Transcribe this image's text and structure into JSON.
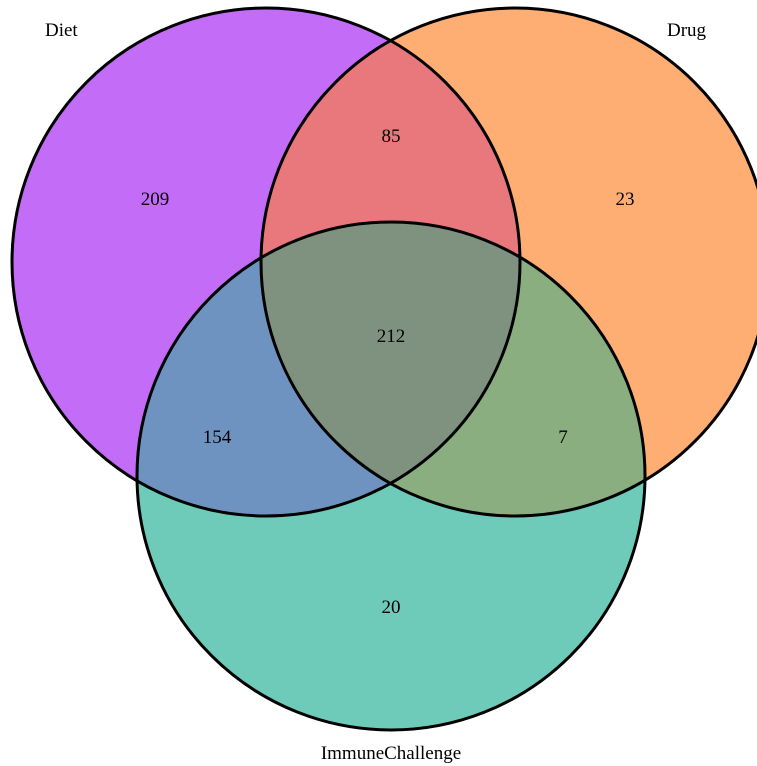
{
  "sets": [
    {
      "id": "diet",
      "label": "Diet",
      "color": "#c26cf8"
    },
    {
      "id": "drug",
      "label": "Drug",
      "color": "#feae72"
    },
    {
      "id": "immune",
      "label": "ImmuneChallenge",
      "color": "#6fcbb9"
    }
  ],
  "region_colors": {
    "diet_drug": "#e8787c",
    "diet_immune": "#6f93c0",
    "drug_immune": "#8aae80",
    "all": "#7f917f"
  },
  "regions": {
    "diet_only": "209",
    "drug_only": "23",
    "immune_only": "20",
    "diet_drug": "85",
    "diet_immune": "154",
    "drug_immune": "7",
    "all": "212"
  }
}
